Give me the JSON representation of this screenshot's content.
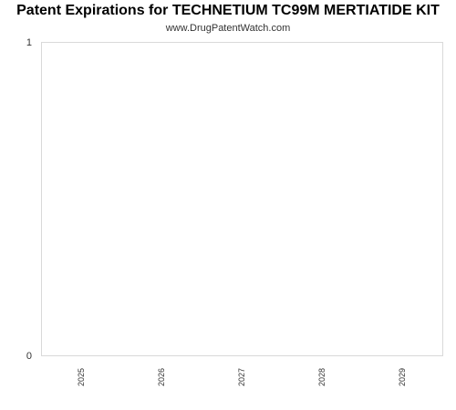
{
  "chart_data": {
    "type": "bar",
    "title": "Patent Expirations for TECHNETIUM TC99M MERTIATIDE KIT",
    "subtitle": "www.DrugPatentWatch.com",
    "xlabel": "",
    "ylabel": "",
    "categories": [
      "2025",
      "2026",
      "2027",
      "2028",
      "2029"
    ],
    "values": [
      0,
      0,
      0,
      0,
      0
    ],
    "ylim": [
      0,
      1
    ],
    "yticks": [
      "0",
      "1"
    ],
    "grid": false,
    "legend": "none",
    "colors": {
      "frame": "#d9d9d9",
      "text": "#333333",
      "title": "#000000"
    }
  }
}
